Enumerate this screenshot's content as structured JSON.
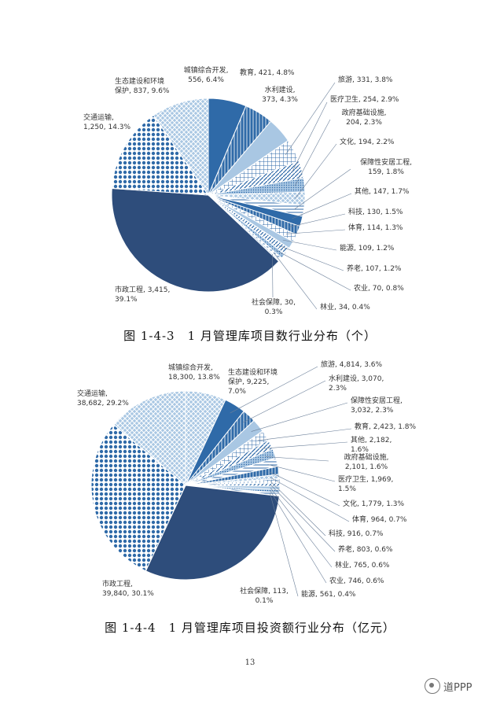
{
  "chart_data": [
    {
      "type": "pie",
      "title": "图 1-4-3　1 月管理库项目数行业分布（个）",
      "slices": [
        {
          "label": "城镇综合开发",
          "value": 556,
          "pct": "6.4%",
          "text": "城镇综合开发,\n556, 6.4%"
        },
        {
          "label": "教育",
          "value": 421,
          "pct": "4.8%",
          "text": "教育, 421, 4.8%"
        },
        {
          "label": "水利建设",
          "value": 373,
          "pct": "4.3%",
          "text": "水利建设,\n373, 4.3%"
        },
        {
          "label": "旅游",
          "value": 331,
          "pct": "3.8%",
          "text": "旅游, 331, 3.8%"
        },
        {
          "label": "医疗卫生",
          "value": 254,
          "pct": "2.9%",
          "text": "医疗卫生, 254, 2.9%"
        },
        {
          "label": "政府基础设施",
          "value": 204,
          "pct": "2.3%",
          "text": "政府基础设施,\n204, 2.3%"
        },
        {
          "label": "文化",
          "value": 194,
          "pct": "2.2%",
          "text": "文化, 194, 2.2%"
        },
        {
          "label": "保障性安居工程",
          "value": 159,
          "pct": "1.8%",
          "text": "保障性安居工程,\n159, 1.8%"
        },
        {
          "label": "其他",
          "value": 147,
          "pct": "1.7%",
          "text": "其他, 147, 1.7%"
        },
        {
          "label": "科技",
          "value": 130,
          "pct": "1.5%",
          "text": "科技, 130, 1.5%"
        },
        {
          "label": "体育",
          "value": 114,
          "pct": "1.3%",
          "text": "体育, 114, 1.3%"
        },
        {
          "label": "能源",
          "value": 109,
          "pct": "1.2%",
          "text": "能源, 109, 1.2%"
        },
        {
          "label": "养老",
          "value": 107,
          "pct": "1.2%",
          "text": "养老, 107, 1.2%"
        },
        {
          "label": "农业",
          "value": 70,
          "pct": "0.8%",
          "text": "农业, 70, 0.8%"
        },
        {
          "label": "林业",
          "value": 34,
          "pct": "0.4%",
          "text": "林业, 34, 0.4%"
        },
        {
          "label": "社会保障",
          "value": 30,
          "pct": "0.3%",
          "text": "社会保障, 30,\n0.3%"
        },
        {
          "label": "市政工程",
          "value": 3415,
          "pct": "39.1%",
          "text": "市政工程, 3,415,\n39.1%"
        },
        {
          "label": "交通运输",
          "value": 1250,
          "pct": "14.3%",
          "text": "交通运输,\n1,250, 14.3%"
        },
        {
          "label": "生态建设和环境保护",
          "value": 837,
          "pct": "9.6%",
          "text": "生态建设和环境\n保护, 837, 9.6%"
        }
      ]
    },
    {
      "type": "pie",
      "title": "图 1-4-4　1 月管理库项目投资额行业分布（亿元）",
      "slices": [
        {
          "label": "生态建设和环境保护",
          "value": 9225,
          "pct": "7.0%",
          "text": "生态建设和环境\n保护, 9,225,\n7.0%"
        },
        {
          "label": "旅游",
          "value": 4814,
          "pct": "3.6%",
          "text": "旅游, 4,814, 3.6%"
        },
        {
          "label": "水利建设",
          "value": 3070,
          "pct": "2.3%",
          "text": "水利建设, 3,070,\n2.3%"
        },
        {
          "label": "保障性安居工程",
          "value": 3032,
          "pct": "2.3%",
          "text": "保障性安居工程,\n3,032, 2.3%"
        },
        {
          "label": "教育",
          "value": 2423,
          "pct": "1.8%",
          "text": "教育, 2,423, 1.8%"
        },
        {
          "label": "其他",
          "value": 2182,
          "pct": "1.6%",
          "text": "其他, 2,182,\n1.6%"
        },
        {
          "label": "政府基础设施",
          "value": 2101,
          "pct": "1.6%",
          "text": "政府基础设施,\n2,101, 1.6%"
        },
        {
          "label": "医疗卫生",
          "value": 1969,
          "pct": "1.5%",
          "text": "医疗卫生, 1,969,\n1.5%"
        },
        {
          "label": "文化",
          "value": 1779,
          "pct": "1.3%",
          "text": "文化, 1,779, 1.3%"
        },
        {
          "label": "体育",
          "value": 964,
          "pct": "0.7%",
          "text": "体育, 964, 0.7%"
        },
        {
          "label": "科技",
          "value": 916,
          "pct": "0.7%",
          "text": "科技, 916, 0.7%"
        },
        {
          "label": "养老",
          "value": 803,
          "pct": "0.6%",
          "text": "养老, 803, 0.6%"
        },
        {
          "label": "林业",
          "value": 765,
          "pct": "0.6%",
          "text": "林业, 765, 0.6%"
        },
        {
          "label": "农业",
          "value": 746,
          "pct": "0.6%",
          "text": "农业, 746, 0.6%"
        },
        {
          "label": "能源",
          "value": 561,
          "pct": "0.4%",
          "text": "能源, 561, 0.4%"
        },
        {
          "label": "社会保障",
          "value": 113,
          "pct": "0.1%",
          "text": "社会保障, 113,\n0.1%"
        },
        {
          "label": "市政工程",
          "value": 39840,
          "pct": "30.1%",
          "text": "市政工程,\n39,840, 30.1%"
        },
        {
          "label": "交通运输",
          "value": 38682,
          "pct": "29.2%",
          "text": "交通运输,\n38,682, 29.2%"
        },
        {
          "label": "城镇综合开发",
          "value": 18300,
          "pct": "13.8%",
          "text": "城镇综合开发,\n18,300, 13.8%"
        }
      ]
    }
  ],
  "colors": {
    "dark_navy": "#2e4d7b",
    "blue": "#2f6aa8",
    "light_blue": "#a9c7e3",
    "outline": "#ffffff"
  },
  "page_number": "13",
  "watermark": "道PPP"
}
